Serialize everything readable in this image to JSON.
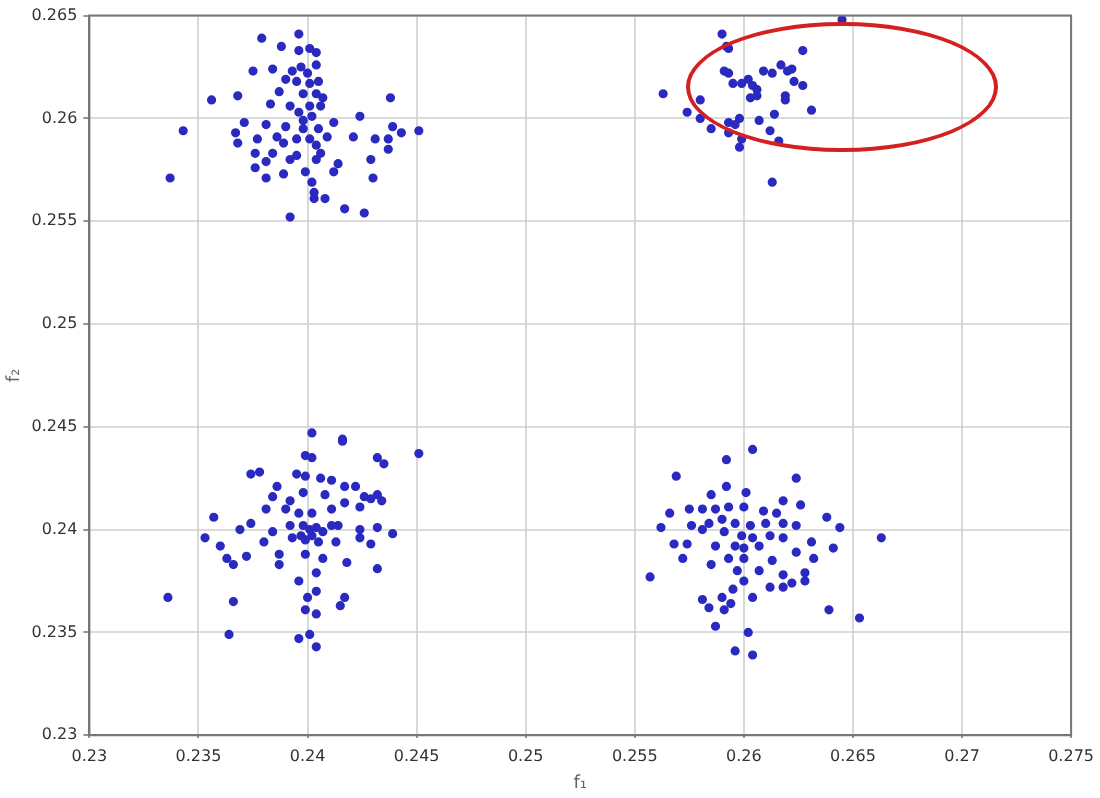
{
  "chart_data": {
    "type": "scatter",
    "xlabel": "f₁",
    "ylabel": "f₂",
    "xlim": [
      0.23,
      0.275
    ],
    "ylim": [
      0.23,
      0.265
    ],
    "xticks": [
      0.23,
      0.235,
      0.24,
      0.245,
      0.25,
      0.255,
      0.26,
      0.265,
      0.27,
      0.275
    ],
    "yticks": [
      0.23,
      0.235,
      0.24,
      0.245,
      0.25,
      0.255,
      0.26,
      0.265
    ],
    "grid": true,
    "marker": "circle",
    "series": [
      {
        "color": "#2a2ac0",
        "x": [
          0.2379,
          0.2396,
          0.2388,
          0.2401,
          0.2404,
          0.2396,
          0.2375,
          0.2384,
          0.2393,
          0.2397,
          0.2404,
          0.24,
          0.239,
          0.2395,
          0.2401,
          0.2405,
          0.2387,
          0.2398,
          0.2404,
          0.2407,
          0.2356,
          0.2368,
          0.2383,
          0.2392,
          0.2401,
          0.2406,
          0.2396,
          0.2402,
          0.2412,
          0.2371,
          0.2381,
          0.239,
          0.2398,
          0.2405,
          0.2424,
          0.2439,
          0.2451,
          0.2343,
          0.2367,
          0.2377,
          0.2386,
          0.2395,
          0.2401,
          0.2409,
          0.2421,
          0.2431,
          0.2437,
          0.2443,
          0.2368,
          0.2389,
          0.2404,
          0.2376,
          0.2384,
          0.2395,
          0.2406,
          0.2437,
          0.2381,
          0.2392,
          0.2404,
          0.2414,
          0.2376,
          0.2389,
          0.2399,
          0.2412,
          0.2429,
          0.2381,
          0.2402,
          0.243,
          0.2337,
          0.2403,
          0.2408,
          0.2403,
          0.2417,
          0.2426,
          0.2392,
          0.2438,
          0.2398,
          0.2645,
          0.259,
          0.2592,
          0.2593,
          0.2627,
          0.2617,
          0.2622,
          0.2591,
          0.2593,
          0.2609,
          0.2613,
          0.262,
          0.2602,
          0.2599,
          0.2595,
          0.2604,
          0.2623,
          0.2627,
          0.2606,
          0.2563,
          0.2606,
          0.2603,
          0.2619,
          0.2619,
          0.258,
          0.2574,
          0.2631,
          0.2614,
          0.258,
          0.2598,
          0.2607,
          0.2593,
          0.2596,
          0.2585,
          0.2612,
          0.2593,
          0.2599,
          0.2616,
          0.2598,
          0.2613,
          0.2402,
          0.2416,
          0.2416,
          0.2451,
          0.2432,
          0.2435,
          0.2399,
          0.2402,
          0.2374,
          0.2378,
          0.2395,
          0.2399,
          0.2406,
          0.2411,
          0.2417,
          0.2422,
          0.2386,
          0.2398,
          0.2408,
          0.2426,
          0.2432,
          0.2357,
          0.2374,
          0.2381,
          0.239,
          0.2396,
          0.2402,
          0.2411,
          0.2417,
          0.2424,
          0.2429,
          0.2434,
          0.2369,
          0.2353,
          0.2384,
          0.2392,
          0.2398,
          0.2401,
          0.2404,
          0.2407,
          0.2414,
          0.2424,
          0.2432,
          0.2439,
          0.236,
          0.238,
          0.2393,
          0.2399,
          0.2405,
          0.2413,
          0.2424,
          0.2429,
          0.2363,
          0.2372,
          0.2387,
          0.2399,
          0.2407,
          0.2418,
          0.2366,
          0.2387,
          0.2404,
          0.2432,
          0.2396,
          0.24,
          0.2404,
          0.2417,
          0.2415,
          0.2399,
          0.2404,
          0.2336,
          0.2366,
          0.2364,
          0.2396,
          0.2401,
          0.2404,
          0.2384,
          0.2392,
          0.2411,
          0.2397,
          0.2402,
          0.2604,
          0.2592,
          0.2569,
          0.2624,
          0.2592,
          0.2585,
          0.2601,
          0.2618,
          0.2626,
          0.2575,
          0.2581,
          0.2587,
          0.2593,
          0.26,
          0.2609,
          0.2615,
          0.2638,
          0.2566,
          0.2562,
          0.2576,
          0.2584,
          0.259,
          0.2596,
          0.2603,
          0.261,
          0.2618,
          0.2624,
          0.2644,
          0.2663,
          0.2581,
          0.2591,
          0.2599,
          0.2604,
          0.2612,
          0.2618,
          0.2631,
          0.2568,
          0.2574,
          0.2587,
          0.2596,
          0.26,
          0.2607,
          0.2624,
          0.2641,
          0.2572,
          0.2585,
          0.2593,
          0.26,
          0.2613,
          0.2632,
          0.2557,
          0.2597,
          0.2607,
          0.2618,
          0.2628,
          0.26,
          0.2595,
          0.2612,
          0.2618,
          0.2622,
          0.2628,
          0.2581,
          0.259,
          0.2604,
          0.2584,
          0.2591,
          0.2594,
          0.2639,
          0.2653,
          0.2587,
          0.2602,
          0.2596,
          0.2604
        ],
        "values": [
          0.2639,
          0.2641,
          0.2635,
          0.2634,
          0.2632,
          0.2633,
          0.2623,
          0.2624,
          0.2623,
          0.2625,
          0.2626,
          0.2622,
          0.2619,
          0.2618,
          0.2617,
          0.2618,
          0.2613,
          0.2612,
          0.2612,
          0.261,
          0.2609,
          0.2611,
          0.2607,
          0.2606,
          0.2606,
          0.2606,
          0.2603,
          0.2601,
          0.2598,
          0.2598,
          0.2597,
          0.2596,
          0.2595,
          0.2595,
          0.2601,
          0.2596,
          0.2594,
          0.2594,
          0.2593,
          0.259,
          0.2591,
          0.259,
          0.259,
          0.2591,
          0.2591,
          0.259,
          0.259,
          0.2593,
          0.2588,
          0.2588,
          0.2587,
          0.2583,
          0.2583,
          0.2582,
          0.2583,
          0.2585,
          0.2579,
          0.258,
          0.258,
          0.2578,
          0.2576,
          0.2573,
          0.2574,
          0.2574,
          0.258,
          0.2571,
          0.2569,
          0.2571,
          0.2571,
          0.2564,
          0.2561,
          0.2561,
          0.2556,
          0.2554,
          0.2552,
          0.261,
          0.2599,
          0.2648,
          0.2641,
          0.2635,
          0.2634,
          0.2633,
          0.2626,
          0.2624,
          0.2623,
          0.2622,
          0.2623,
          0.2622,
          0.2623,
          0.2619,
          0.2617,
          0.2617,
          0.2616,
          0.2618,
          0.2616,
          0.2614,
          0.2612,
          0.2611,
          0.261,
          0.2611,
          0.2609,
          0.2609,
          0.2603,
          0.2604,
          0.2602,
          0.26,
          0.26,
          0.2599,
          0.2598,
          0.2597,
          0.2595,
          0.2594,
          0.2593,
          0.259,
          0.2589,
          0.2586,
          0.2569,
          0.2447,
          0.2444,
          0.2443,
          0.2437,
          0.2435,
          0.2432,
          0.2436,
          0.2435,
          0.2427,
          0.2428,
          0.2427,
          0.2426,
          0.2425,
          0.2424,
          0.2421,
          0.2421,
          0.2421,
          0.2418,
          0.2417,
          0.2416,
          0.2417,
          0.2406,
          0.2403,
          0.241,
          0.241,
          0.2408,
          0.2408,
          0.241,
          0.2413,
          0.2411,
          0.2415,
          0.2414,
          0.24,
          0.2396,
          0.2399,
          0.2402,
          0.2402,
          0.24,
          0.2401,
          0.2399,
          0.2402,
          0.24,
          0.2401,
          0.2398,
          0.2392,
          0.2394,
          0.2396,
          0.2395,
          0.2394,
          0.2394,
          0.2396,
          0.2393,
          0.2386,
          0.2387,
          0.2388,
          0.2388,
          0.2386,
          0.2384,
          0.2383,
          0.2383,
          0.2379,
          0.2381,
          0.2375,
          0.2367,
          0.237,
          0.2367,
          0.2363,
          0.2361,
          0.2359,
          0.2367,
          0.2365,
          0.2349,
          0.2347,
          0.2349,
          0.2343,
          0.2416,
          0.2414,
          0.2402,
          0.2397,
          0.2397,
          0.2439,
          0.2434,
          0.2426,
          0.2425,
          0.2421,
          0.2417,
          0.2418,
          0.2414,
          0.2412,
          0.241,
          0.241,
          0.241,
          0.2411,
          0.2411,
          0.2409,
          0.2408,
          0.2406,
          0.2408,
          0.2401,
          0.2402,
          0.2403,
          0.2405,
          0.2403,
          0.2402,
          0.2403,
          0.2403,
          0.2402,
          0.2401,
          0.2396,
          0.24,
          0.2399,
          0.2397,
          0.2396,
          0.2397,
          0.2396,
          0.2394,
          0.2393,
          0.2393,
          0.2392,
          0.2392,
          0.2391,
          0.2392,
          0.2389,
          0.2391,
          0.2386,
          0.2383,
          0.2386,
          0.2386,
          0.2385,
          0.2386,
          0.2377,
          0.238,
          0.238,
          0.2378,
          0.2379,
          0.2375,
          0.2371,
          0.2372,
          0.2372,
          0.2374,
          0.2375,
          0.2366,
          0.2367,
          0.2367,
          0.2362,
          0.2361,
          0.2364,
          0.2361,
          0.2357,
          0.2353,
          0.235,
          0.2341,
          0.2339
        ]
      }
    ]
  }
}
